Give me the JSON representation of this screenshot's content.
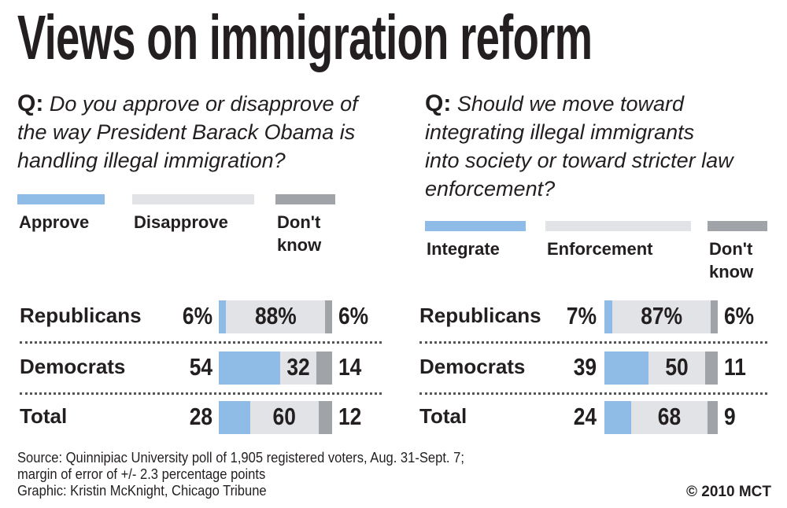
{
  "title": "Views on immigration reform",
  "colors": {
    "blue": "#8fbce6",
    "light": "#e1e3e6",
    "dark": "#a0a3a7"
  },
  "chart_data": [
    {
      "type": "bar",
      "stacked": true,
      "orientation": "horizontal",
      "question_prefix": "Q:",
      "question": [
        "Do you approve or disapprove of",
        "the way President Barack Obama is",
        "handling illegal immigration?"
      ],
      "legend": [
        "Approve",
        "Disapprove",
        "Don't know"
      ],
      "categories": [
        "Republicans",
        "Democrats",
        "Total"
      ],
      "series": [
        {
          "name": "Approve",
          "values": [
            6,
            54,
            28
          ],
          "labels": [
            "6%",
            "54",
            "28"
          ]
        },
        {
          "name": "Disapprove",
          "values": [
            88,
            32,
            60
          ],
          "labels": [
            "88%",
            "32",
            "60"
          ]
        },
        {
          "name": "Don't know",
          "values": [
            6,
            14,
            12
          ],
          "labels": [
            "6%",
            "14",
            "12"
          ]
        }
      ]
    },
    {
      "type": "bar",
      "stacked": true,
      "orientation": "horizontal",
      "question_prefix": "Q:",
      "question": [
        "Should we move toward",
        "integrating illegal immigrants",
        "into society or toward stricter law",
        "enforcement?"
      ],
      "legend": [
        "Integrate",
        "Enforcement",
        "Don't know"
      ],
      "categories": [
        "Republicans",
        "Democrats",
        "Total"
      ],
      "series": [
        {
          "name": "Integrate",
          "values": [
            7,
            39,
            24
          ],
          "labels": [
            "7%",
            "39",
            "24"
          ]
        },
        {
          "name": "Enforcement",
          "values": [
            87,
            50,
            68
          ],
          "labels": [
            "87%",
            "50",
            "68"
          ]
        },
        {
          "name": "Don't know",
          "values": [
            6,
            11,
            9
          ],
          "labels": [
            "6%",
            "11",
            "9"
          ]
        }
      ]
    }
  ],
  "footer": {
    "source": [
      "Source: Quinnipiac University poll of 1,905 registered voters, Aug. 31-Sept. 7;",
      "margin of error of +/- 2.3 percentage points"
    ],
    "credit": "Graphic: Kristin McKnight, Chicago Tribune",
    "copyright": "© 2010 MCT"
  }
}
